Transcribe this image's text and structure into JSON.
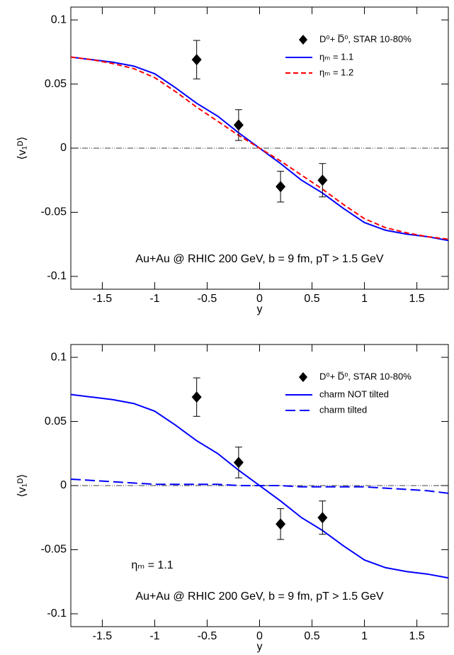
{
  "chart_data": [
    {
      "type": "line",
      "xlabel": "y",
      "ylabel": "⟨v₁ᴰ⟩",
      "annotations": [
        "Au+Au @ RHIC 200 GeV,  b = 9 fm,  pT > 1.5 GeV"
      ],
      "xlim": [
        -1.8,
        1.8
      ],
      "ylim": [
        -0.11,
        0.11
      ],
      "xticks": [
        -1.5,
        -1,
        -0.5,
        0,
        0.5,
        1,
        1.5
      ],
      "yticks": [
        -0.1,
        -0.05,
        0,
        0.05,
        0.1
      ],
      "legend": "top right",
      "points": {
        "name": "D⁰+ D̅⁰, STAR 10-80%",
        "color": "#000000",
        "x": [
          -0.6,
          -0.2,
          0.2,
          0.6
        ],
        "values": [
          0.069,
          0.018,
          -0.03,
          -0.025
        ],
        "errors": [
          0.015,
          0.012,
          0.012,
          0.013
        ]
      },
      "x": [
        -1.8,
        -1.6,
        -1.4,
        -1.2,
        -1.0,
        -0.8,
        -0.6,
        -0.4,
        -0.2,
        0,
        0.2,
        0.4,
        0.6,
        0.8,
        1.0,
        1.2,
        1.4,
        1.6,
        1.8
      ],
      "series": [
        {
          "name": "ηₘ = 1.1",
          "color": "#0000ff",
          "dash": "solid",
          "values": [
            0.071,
            0.069,
            0.067,
            0.064,
            0.058,
            0.047,
            0.035,
            0.025,
            0.012,
            0.0,
            -0.012,
            -0.025,
            -0.035,
            -0.047,
            -0.058,
            -0.064,
            -0.067,
            -0.069,
            -0.072
          ]
        },
        {
          "name": "ηₘ = 1.2",
          "color": "#ff0000",
          "dash": "dashed",
          "values": [
            0.071,
            0.069,
            0.066,
            0.062,
            0.055,
            0.044,
            0.032,
            0.021,
            0.01,
            0.0,
            -0.01,
            -0.021,
            -0.032,
            -0.044,
            -0.055,
            -0.062,
            -0.066,
            -0.069,
            -0.071
          ]
        }
      ]
    },
    {
      "type": "line",
      "xlabel": "y",
      "ylabel": "⟨v₁ᴰ⟩",
      "annotations": [
        "Au+Au @ RHIC 200 GeV,  b = 9 fm,  pT > 1.5 GeV",
        "ηₘ = 1.1"
      ],
      "xlim": [
        -1.8,
        1.8
      ],
      "ylim": [
        -0.11,
        0.11
      ],
      "xticks": [
        -1.5,
        -1,
        -0.5,
        0,
        0.5,
        1,
        1.5
      ],
      "yticks": [
        -0.1,
        -0.05,
        0,
        0.05,
        0.1
      ],
      "legend": "top right",
      "points": {
        "name": "D⁰+ D̅⁰, STAR 10-80%",
        "color": "#000000",
        "x": [
          -0.6,
          -0.2,
          0.2,
          0.6
        ],
        "values": [
          0.069,
          0.018,
          -0.03,
          -0.025
        ],
        "errors": [
          0.015,
          0.012,
          0.012,
          0.013
        ]
      },
      "x": [
        -1.8,
        -1.6,
        -1.4,
        -1.2,
        -1.0,
        -0.8,
        -0.6,
        -0.4,
        -0.2,
        0,
        0.2,
        0.4,
        0.6,
        0.8,
        1.0,
        1.2,
        1.4,
        1.6,
        1.8
      ],
      "series": [
        {
          "name": "charm NOT tilted",
          "color": "#0000ff",
          "dash": "solid",
          "values": [
            0.071,
            0.069,
            0.067,
            0.064,
            0.058,
            0.047,
            0.035,
            0.025,
            0.012,
            0.0,
            -0.012,
            -0.025,
            -0.035,
            -0.047,
            -0.058,
            -0.064,
            -0.067,
            -0.069,
            -0.072
          ]
        },
        {
          "name": "charm tilted",
          "color": "#0000ff",
          "dash": "longdash",
          "values": [
            0.005,
            0.004,
            0.003,
            0.002,
            0.001,
            0.001,
            0.001,
            0.001,
            0.0,
            0.0,
            0.0,
            -0.001,
            -0.001,
            -0.001,
            -0.001,
            -0.002,
            -0.003,
            -0.004,
            -0.006
          ]
        }
      ]
    }
  ]
}
